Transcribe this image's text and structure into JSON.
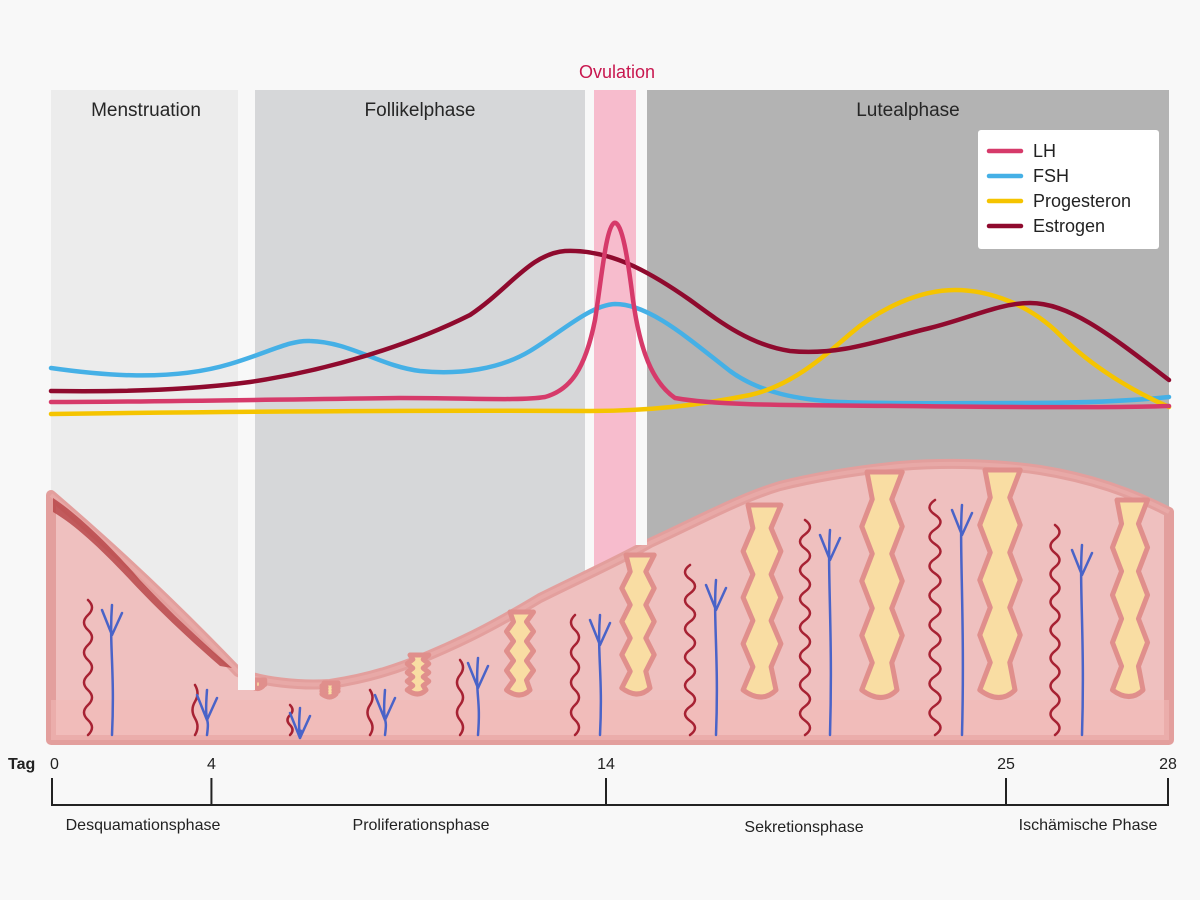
{
  "phases": {
    "menstruation": "Menstruation",
    "follicular": "Follikelphase",
    "ovulation": "Ovulation",
    "luteal": "Lutealphase"
  },
  "legend": [
    {
      "name": "LH",
      "color": "#d63a6a"
    },
    {
      "name": "FSH",
      "color": "#45b0e6"
    },
    {
      "name": "Progesteron",
      "color": "#f5c400"
    },
    {
      "name": "Estrogen",
      "color": "#8f0a2e"
    }
  ],
  "timeline": {
    "axis_label": "Tag",
    "ticks": [
      "0",
      "4",
      "14",
      "25",
      "28"
    ],
    "phases": [
      "Desquamationsphase",
      "Proliferationsphase",
      "Sekretionsphase",
      "Ischämische Phase"
    ]
  },
  "colors": {
    "menstruation_band": "#ececec",
    "follicular_band": "#d6d7d9",
    "ovulation_band": "#f7bccd",
    "luteal_band": "#b3b3b3",
    "ovulation_label": "#c8174f",
    "tissue": "#efc0bf",
    "tissue_edge": "#e39f9d",
    "gland_fill": "#f9dda3",
    "artery": "#a72233",
    "vein": "#4a63c8"
  }
}
